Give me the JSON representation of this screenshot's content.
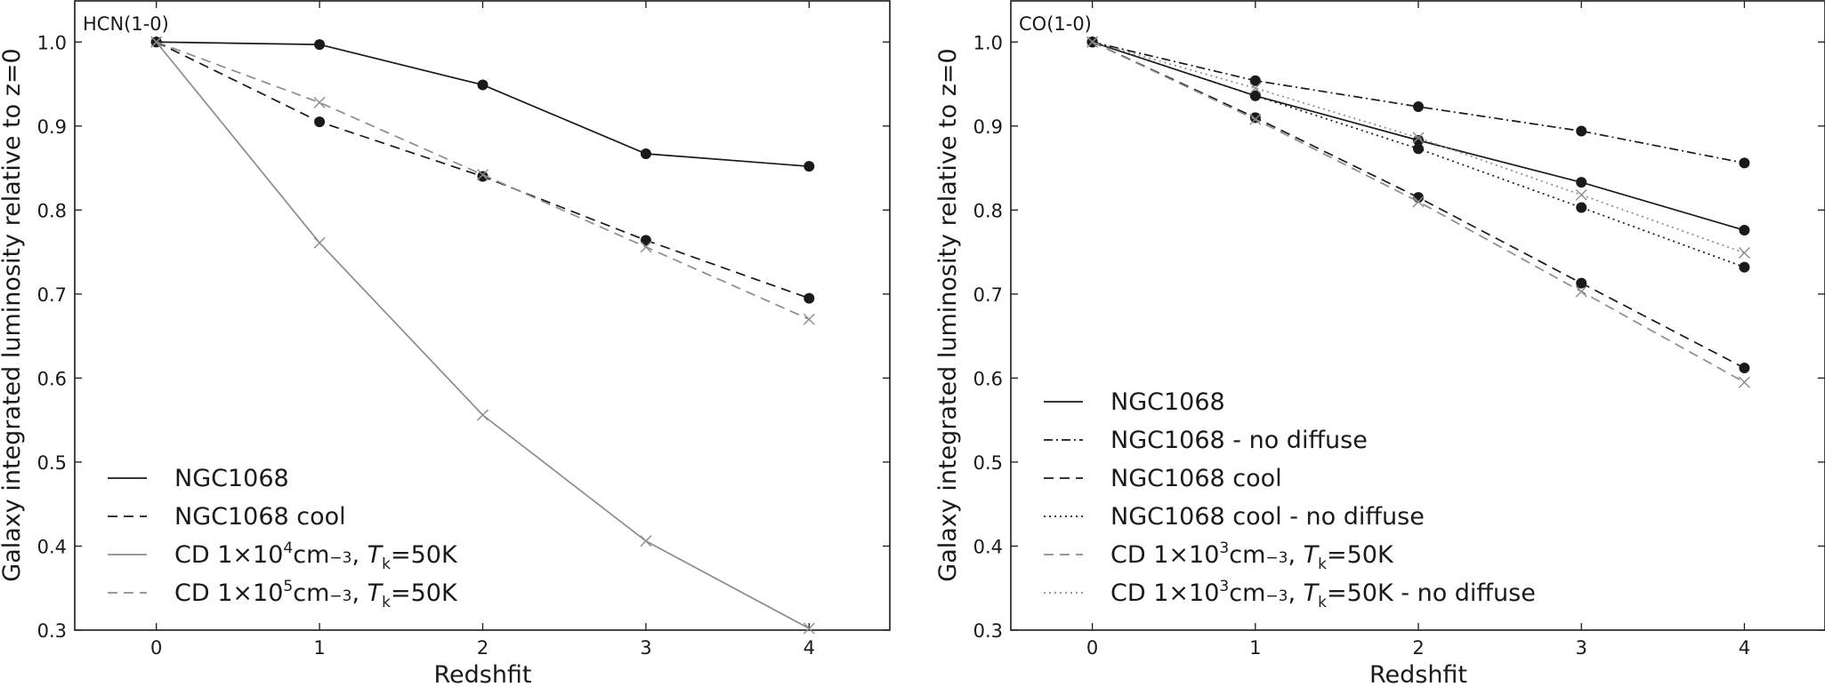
{
  "chart_data": [
    {
      "type": "line",
      "panel_title": "HCN(1-0)",
      "xlabel": "Redshfit",
      "ylabel": "Galaxy integrated luminosity relative to z=0",
      "xlim": [
        -0.5,
        4.5
      ],
      "ylim": [
        0.3,
        1.05
      ],
      "xticks": [
        0,
        1,
        2,
        3,
        4
      ],
      "yticks": [
        0.3,
        0.4,
        0.5,
        0.6,
        0.7,
        0.8,
        0.9,
        1.0
      ],
      "grid": false,
      "legend_position": "lower-left",
      "x": [
        0,
        1,
        2,
        3,
        4
      ],
      "series": [
        {
          "name": "NGC1068",
          "label_parts": [
            "NGC1068"
          ],
          "values": [
            1.0,
            0.997,
            0.949,
            0.867,
            0.852
          ],
          "color": "#1a1a1a",
          "dash": "solid",
          "marker": "dot"
        },
        {
          "name": "NGC1068 cool",
          "label_parts": [
            "NGC1068 cool"
          ],
          "values": [
            1.0,
            0.905,
            0.84,
            0.764,
            0.695
          ],
          "color": "#1a1a1a",
          "dash": "dashed",
          "marker": "dot"
        },
        {
          "name": "CD 1×10^4cm^-3, T_k=50K",
          "label_parts": [
            "CD ",
            "1",
            "×",
            "10",
            "4",
            "cm",
            "−3",
            ", ",
            "T",
            "k",
            "=",
            "50",
            "K"
          ],
          "values": [
            1.0,
            0.761,
            0.556,
            0.406,
            0.302
          ],
          "color": "#8c8c8c",
          "dash": "solid",
          "marker": "x"
        },
        {
          "name": "CD 1×10^5cm^-3, T_k=50K",
          "label_parts": [
            "CD ",
            "1",
            "×",
            "10",
            "5",
            "cm",
            "−3",
            ", ",
            "T",
            "k",
            "=",
            "50",
            "K"
          ],
          "values": [
            1.0,
            0.928,
            0.842,
            0.756,
            0.67
          ],
          "color": "#8c8c8c",
          "dash": "dashed",
          "marker": "x"
        }
      ]
    },
    {
      "type": "line",
      "panel_title": "CO(1-0)",
      "xlabel": "Redshfit",
      "ylabel": "Galaxy integrated luminosity relative to z=0",
      "xlim": [
        -0.5,
        4.5
      ],
      "ylim": [
        0.3,
        1.05
      ],
      "xticks": [
        0,
        1,
        2,
        3,
        4
      ],
      "yticks": [
        0.3,
        0.4,
        0.5,
        0.6,
        0.7,
        0.8,
        0.9,
        1.0
      ],
      "grid": false,
      "legend_position": "lower-left",
      "x": [
        0,
        1,
        2,
        3,
        4
      ],
      "series": [
        {
          "name": "NGC1068",
          "label_parts": [
            "NGC1068"
          ],
          "values": [
            1.0,
            0.936,
            0.883,
            0.833,
            0.776
          ],
          "color": "#1a1a1a",
          "dash": "solid",
          "marker": "dot"
        },
        {
          "name": "NGC1068 - no diffuse",
          "label_parts": [
            "NGC1068 - no diffuse"
          ],
          "values": [
            1.0,
            0.954,
            0.923,
            0.894,
            0.856
          ],
          "color": "#1a1a1a",
          "dash": "dashdot",
          "marker": "dot"
        },
        {
          "name": "NGC1068 cool",
          "label_parts": [
            "NGC1068 cool"
          ],
          "values": [
            1.0,
            0.91,
            0.815,
            0.713,
            0.612
          ],
          "color": "#1a1a1a",
          "dash": "dashed",
          "marker": "dot"
        },
        {
          "name": "NGC1068 cool - no diffuse",
          "label_parts": [
            "NGC1068 cool - no diffuse"
          ],
          "values": [
            1.0,
            0.936,
            0.873,
            0.803,
            0.732
          ],
          "color": "#1a1a1a",
          "dash": "dotted",
          "marker": "dot"
        },
        {
          "name": "CD 1×10^3cm^-3, T_k=50K",
          "label_parts": [
            "CD ",
            "1",
            "×",
            "10",
            "3",
            "cm",
            "−3",
            ", ",
            "T",
            "k",
            "=",
            "50",
            "K"
          ],
          "values": [
            1.0,
            0.908,
            0.81,
            0.703,
            0.595
          ],
          "color": "#8c8c8c",
          "dash": "dashed",
          "marker": "x"
        },
        {
          "name": "CD 1×10^3cm^-3, T_k=50K - no diffuse",
          "label_parts": [
            "CD ",
            "1",
            "×",
            "10",
            "3",
            "cm",
            "−3",
            ", ",
            "T",
            "k",
            "=",
            "50",
            "K - no diffuse"
          ],
          "values": [
            1.0,
            0.945,
            0.886,
            0.818,
            0.749
          ],
          "color": "#8c8c8c",
          "dash": "dotted",
          "marker": "x"
        }
      ]
    }
  ]
}
